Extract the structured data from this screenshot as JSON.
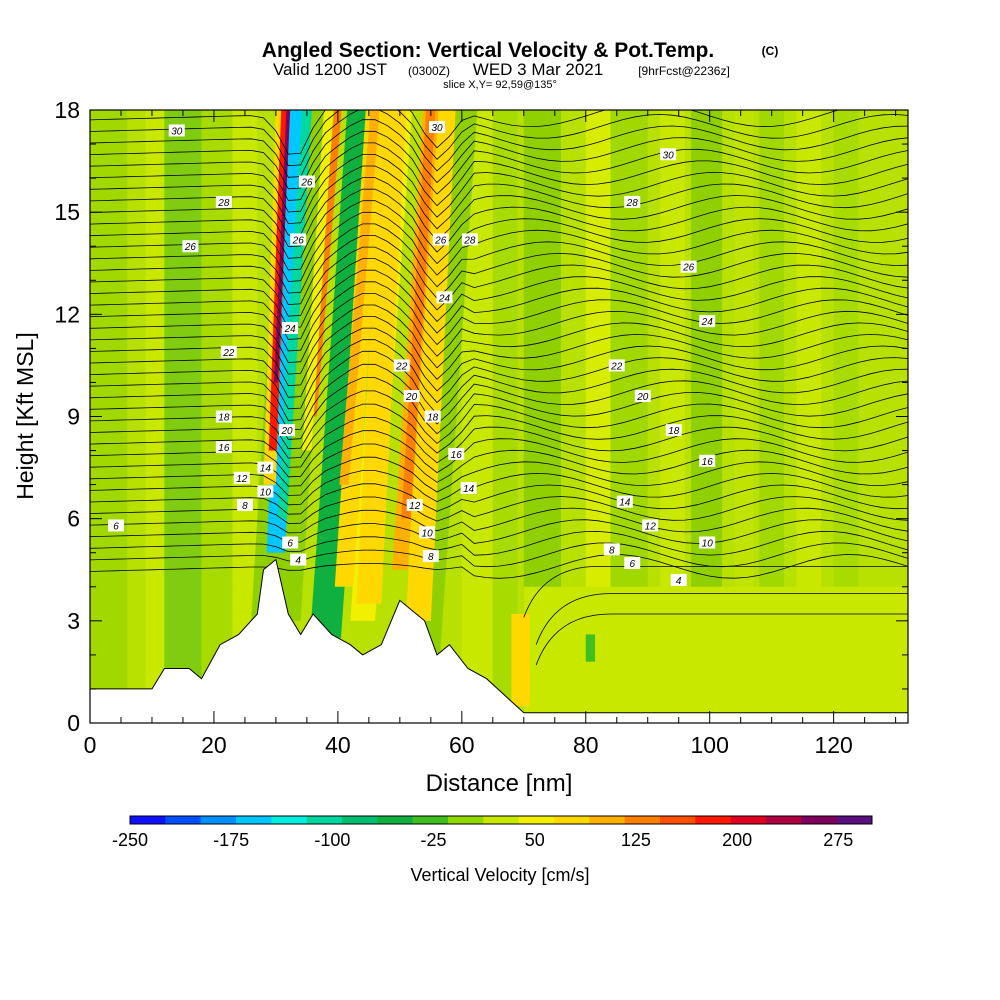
{
  "header": {
    "title": "Angled Section: Vertical Velocity & Pot.Temp.",
    "copyright": "(C)",
    "valid_prefix": "Valid 1200 JST",
    "valid_z": "(0300Z)",
    "valid_date": "WED 3 Mar 2021",
    "forecast": "[9hrFcst@2236z]",
    "slice": "slice X,Y= 92,59@135°"
  },
  "chart_data": {
    "type": "heatmap",
    "xlabel": "Distance [nm]",
    "ylabel": "Height [Kft MSL]",
    "xlim": [
      0,
      132
    ],
    "ylim": [
      0,
      18
    ],
    "x_ticks": [
      0,
      20,
      40,
      60,
      80,
      100,
      120
    ],
    "y_ticks": [
      0,
      3,
      6,
      9,
      12,
      15,
      18
    ],
    "colorbar": {
      "label": "Vertical Velocity [cm/s]",
      "range": [
        -250,
        300
      ],
      "ticks": [
        -250,
        -175,
        -100,
        -25,
        50,
        125,
        200,
        275
      ],
      "colors": [
        "#1010ff",
        "#0050ff",
        "#0090ff",
        "#00c8ff",
        "#00f0e0",
        "#00d8a0",
        "#00c070",
        "#10b040",
        "#40c020",
        "#90d800",
        "#c8e800",
        "#f0f000",
        "#ffd800",
        "#ffb000",
        "#ff8000",
        "#ff5000",
        "#ff1800",
        "#e00020",
        "#b00040",
        "#800060",
        "#5a1080"
      ]
    },
    "terrain_kft": [
      [
        0,
        1
      ],
      [
        10,
        1
      ],
      [
        12,
        1.6
      ],
      [
        16,
        1.6
      ],
      [
        18,
        1.3
      ],
      [
        21,
        2.3
      ],
      [
        24,
        2.6
      ],
      [
        27,
        3.2
      ],
      [
        28,
        4.5
      ],
      [
        30,
        4.8
      ],
      [
        32,
        3.2
      ],
      [
        34,
        2.6
      ],
      [
        36,
        3.2
      ],
      [
        39,
        2.6
      ],
      [
        42,
        2.3
      ],
      [
        44,
        2.0
      ],
      [
        47,
        2.3
      ],
      [
        50,
        3.6
      ],
      [
        54,
        3.0
      ],
      [
        56,
        2.0
      ],
      [
        58,
        2.3
      ],
      [
        61,
        1.6
      ],
      [
        64,
        1.3
      ],
      [
        67,
        0.8
      ],
      [
        70,
        0.3
      ],
      [
        72,
        0.3
      ],
      [
        132,
        0.3
      ]
    ],
    "isentrope_labels": [
      {
        "text": "30",
        "x": 14,
        "y": 17.4
      },
      {
        "text": "28",
        "x": 21.6,
        "y": 15.3
      },
      {
        "text": "26",
        "x": 16.2,
        "y": 14.0
      },
      {
        "text": "22",
        "x": 22.4,
        "y": 10.9
      },
      {
        "text": "18",
        "x": 21.6,
        "y": 9.0
      },
      {
        "text": "16",
        "x": 21.6,
        "y": 8.1
      },
      {
        "text": "14",
        "x": 28.3,
        "y": 7.5
      },
      {
        "text": "12",
        "x": 24.5,
        "y": 7.2
      },
      {
        "text": "10",
        "x": 28.3,
        "y": 6.8
      },
      {
        "text": "8",
        "x": 25,
        "y": 6.4
      },
      {
        "text": "6",
        "x": 4.2,
        "y": 5.8
      },
      {
        "text": "26",
        "x": 35,
        "y": 15.9
      },
      {
        "text": "26",
        "x": 33.6,
        "y": 14.2
      },
      {
        "text": "24",
        "x": 32.3,
        "y": 11.6
      },
      {
        "text": "20",
        "x": 31.8,
        "y": 8.6
      },
      {
        "text": "6",
        "x": 32.3,
        "y": 5.3
      },
      {
        "text": "4",
        "x": 33.6,
        "y": 4.8
      },
      {
        "text": "30",
        "x": 56,
        "y": 17.5
      },
      {
        "text": "26",
        "x": 56.6,
        "y": 14.2
      },
      {
        "text": "28",
        "x": 61.3,
        "y": 14.2
      },
      {
        "text": "24",
        "x": 57.2,
        "y": 12.5
      },
      {
        "text": "22",
        "x": 50.3,
        "y": 10.5
      },
      {
        "text": "20",
        "x": 51.9,
        "y": 9.6
      },
      {
        "text": "18",
        "x": 55.3,
        "y": 9.0
      },
      {
        "text": "16",
        "x": 59.1,
        "y": 7.9
      },
      {
        "text": "14",
        "x": 61.1,
        "y": 6.9
      },
      {
        "text": "12",
        "x": 52.4,
        "y": 6.4
      },
      {
        "text": "10",
        "x": 54.4,
        "y": 5.6
      },
      {
        "text": "8",
        "x": 55,
        "y": 4.9
      },
      {
        "text": "30",
        "x": 93.3,
        "y": 16.7
      },
      {
        "text": "28",
        "x": 87.5,
        "y": 15.3
      },
      {
        "text": "26",
        "x": 96.6,
        "y": 13.4
      },
      {
        "text": "24",
        "x": 99.6,
        "y": 11.8
      },
      {
        "text": "22",
        "x": 85,
        "y": 10.5
      },
      {
        "text": "20",
        "x": 89.2,
        "y": 9.6
      },
      {
        "text": "18",
        "x": 94.2,
        "y": 8.6
      },
      {
        "text": "16",
        "x": 99.6,
        "y": 7.7
      },
      {
        "text": "14",
        "x": 86.3,
        "y": 6.5
      },
      {
        "text": "12",
        "x": 90.4,
        "y": 5.8
      },
      {
        "text": "10",
        "x": 99.6,
        "y": 5.3
      },
      {
        "text": "8",
        "x": 84.2,
        "y": 5.1
      },
      {
        "text": "6",
        "x": 87.5,
        "y": 4.7
      },
      {
        "text": "4",
        "x": 95,
        "y": 4.2
      }
    ]
  }
}
